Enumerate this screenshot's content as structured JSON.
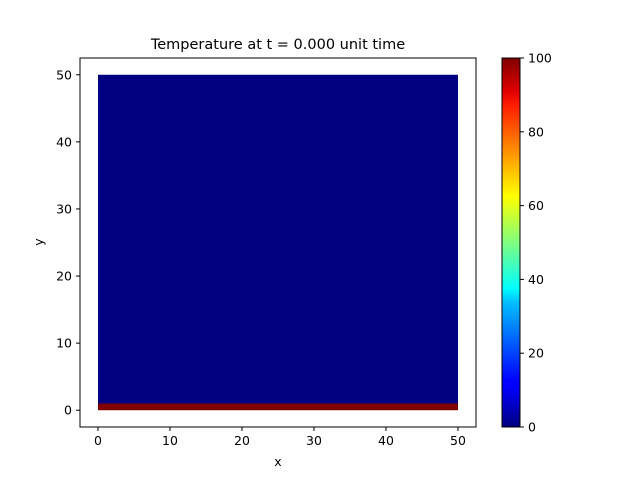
{
  "chart_data": {
    "type": "heatmap",
    "title": "Temperature at t = 0.000 unit time",
    "xlabel": "x",
    "ylabel": "y",
    "xlim": [
      -2.5,
      52.5
    ],
    "ylim": [
      -2.5,
      52.5
    ],
    "xticks": [
      0,
      10,
      20,
      30,
      40,
      50
    ],
    "yticks": [
      0,
      10,
      20,
      30,
      40,
      50
    ],
    "colormap": "jet",
    "field": {
      "x_range": [
        0,
        50
      ],
      "y_range": [
        0,
        50
      ],
      "regions": [
        {
          "name": "interior",
          "y_from": 1,
          "y_to": 50,
          "value": 0
        },
        {
          "name": "bottom boundary",
          "y_from": 0,
          "y_to": 1,
          "value": 100
        }
      ]
    },
    "colorbar": {
      "min": 0,
      "max": 100,
      "ticks": [
        0,
        20,
        40,
        60,
        80,
        100
      ]
    },
    "grid": false
  }
}
